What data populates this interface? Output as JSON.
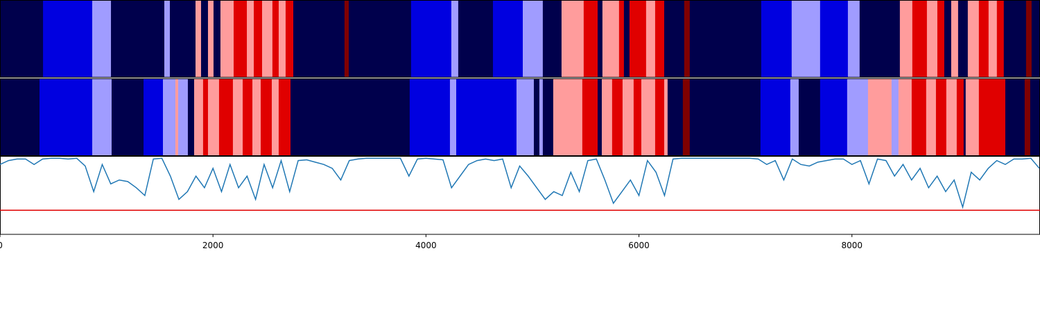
{
  "chart_data": {
    "type": "strips-and-line",
    "xlim": [
      0,
      9766
    ],
    "xticks": [
      0,
      2000,
      4000,
      6000,
      8000
    ],
    "colors": [
      "#00004c",
      "#0000e0",
      "#a09cff",
      "#ff9c9c",
      "#e00000",
      "#800000"
    ],
    "strips": [
      {
        "edges": [
          0,
          404,
          866,
          1042,
          1543,
          1595,
          1836,
          1888,
          1953,
          2005,
          2070,
          2194,
          2318,
          2383,
          2461,
          2558,
          2617,
          2682,
          2754,
          3235,
          3275,
          3860,
          4238,
          4303,
          4629,
          4909,
          5097,
          5273,
          5481,
          5612,
          5657,
          5813,
          5859,
          5911,
          6067,
          6152,
          6237,
          6425,
          6477,
          7148,
          7434,
          7701,
          7962,
          8072,
          8450,
          8567,
          8704,
          8802,
          8867,
          8932,
          8997,
          9088,
          9192,
          9283,
          9361,
          9426,
          9635,
          9687,
          9766
        ],
        "levels": [
          0,
          1,
          2,
          0,
          2,
          0,
          3,
          0,
          3,
          0,
          3,
          4,
          3,
          4,
          3,
          4,
          3,
          4,
          0,
          5,
          0,
          1,
          2,
          0,
          1,
          2,
          0,
          3,
          4,
          0,
          3,
          4,
          0,
          4,
          3,
          4,
          0,
          5,
          0,
          1,
          2,
          1,
          2,
          0,
          3,
          4,
          3,
          4,
          0,
          3,
          0,
          3,
          4,
          3,
          4,
          0,
          5,
          0
        ]
      },
      {
        "edges": [
          0,
          371,
          866,
          1048,
          1348,
          1530,
          1647,
          1673,
          1764,
          1823,
          1907,
          1953,
          2057,
          2187,
          2279,
          2370,
          2448,
          2552,
          2617,
          2728,
          3847,
          4225,
          4284,
          4850,
          5013,
          5065,
          5097,
          5195,
          5468,
          5612,
          5651,
          5748,
          5846,
          5950,
          6022,
          6152,
          6237,
          6269,
          6412,
          6477,
          7141,
          7421,
          7500,
          7701,
          7955,
          8151,
          8372,
          8437,
          8561,
          8697,
          8789,
          8886,
          8984,
          9049,
          9068,
          9192,
          9440,
          9622,
          9674,
          9766
        ],
        "levels": [
          0,
          1,
          2,
          0,
          1,
          2,
          3,
          2,
          0,
          3,
          4,
          3,
          4,
          3,
          4,
          3,
          4,
          3,
          4,
          0,
          1,
          2,
          1,
          2,
          0,
          2,
          0,
          3,
          4,
          0,
          3,
          4,
          3,
          4,
          3,
          4,
          3,
          0,
          5,
          0,
          1,
          2,
          0,
          1,
          2,
          3,
          2,
          3,
          4,
          3,
          4,
          3,
          4,
          0,
          3,
          4,
          0,
          5,
          0
        ]
      }
    ],
    "line": {
      "color": "#1f77b4",
      "ylim": [
        0,
        1
      ],
      "x": [
        0,
        80,
        160,
        240,
        320,
        400,
        480,
        560,
        640,
        720,
        800,
        880,
        960,
        1040,
        1120,
        1200,
        1280,
        1360,
        1440,
        1520,
        1600,
        1680,
        1760,
        1840,
        1920,
        2000,
        2080,
        2160,
        2240,
        2320,
        2400,
        2480,
        2560,
        2640,
        2720,
        2800,
        2880,
        2960,
        3040,
        3120,
        3200,
        3280,
        3360,
        3440,
        3520,
        3600,
        3680,
        3760,
        3840,
        3920,
        4000,
        4080,
        4160,
        4240,
        4320,
        4400,
        4480,
        4560,
        4640,
        4720,
        4800,
        4880,
        4960,
        5040,
        5120,
        5200,
        5280,
        5360,
        5440,
        5520,
        5600,
        5680,
        5760,
        5840,
        5920,
        6000,
        6080,
        6160,
        6240,
        6320,
        6400,
        6480,
        6560,
        6640,
        6720,
        6800,
        6880,
        6960,
        7040,
        7120,
        7200,
        7280,
        7360,
        7440,
        7520,
        7600,
        7680,
        7760,
        7840,
        7920,
        8000,
        8080,
        8160,
        8240,
        8320,
        8400,
        8480,
        8560,
        8640,
        8720,
        8800,
        8880,
        8960,
        9040,
        9120,
        9200,
        9280,
        9360,
        9440,
        9520,
        9600,
        9680,
        9760
      ],
      "values": [
        0.9,
        0.95,
        0.97,
        0.97,
        0.9,
        0.97,
        0.98,
        0.98,
        0.97,
        0.98,
        0.88,
        0.55,
        0.9,
        0.65,
        0.7,
        0.68,
        0.6,
        0.5,
        0.97,
        0.98,
        0.75,
        0.45,
        0.55,
        0.75,
        0.6,
        0.85,
        0.55,
        0.9,
        0.6,
        0.75,
        0.45,
        0.9,
        0.6,
        0.95,
        0.55,
        0.95,
        0.96,
        0.93,
        0.9,
        0.85,
        0.7,
        0.95,
        0.97,
        0.98,
        0.98,
        0.98,
        0.98,
        0.98,
        0.75,
        0.97,
        0.98,
        0.97,
        0.96,
        0.6,
        0.75,
        0.9,
        0.95,
        0.97,
        0.95,
        0.97,
        0.6,
        0.88,
        0.75,
        0.6,
        0.45,
        0.55,
        0.5,
        0.8,
        0.55,
        0.95,
        0.97,
        0.7,
        0.4,
        0.55,
        0.7,
        0.5,
        0.95,
        0.8,
        0.5,
        0.97,
        0.98,
        0.98,
        0.98,
        0.98,
        0.98,
        0.98,
        0.98,
        0.98,
        0.98,
        0.97,
        0.9,
        0.95,
        0.7,
        0.97,
        0.9,
        0.88,
        0.93,
        0.95,
        0.97,
        0.97,
        0.9,
        0.95,
        0.65,
        0.97,
        0.95,
        0.75,
        0.9,
        0.7,
        0.85,
        0.6,
        0.75,
        0.55,
        0.7,
        0.35,
        0.8,
        0.7,
        0.85,
        0.95,
        0.9,
        0.97,
        0.97,
        0.98,
        0.85
      ]
    },
    "threshold": 0.31,
    "threshold_color": "#e00000"
  }
}
